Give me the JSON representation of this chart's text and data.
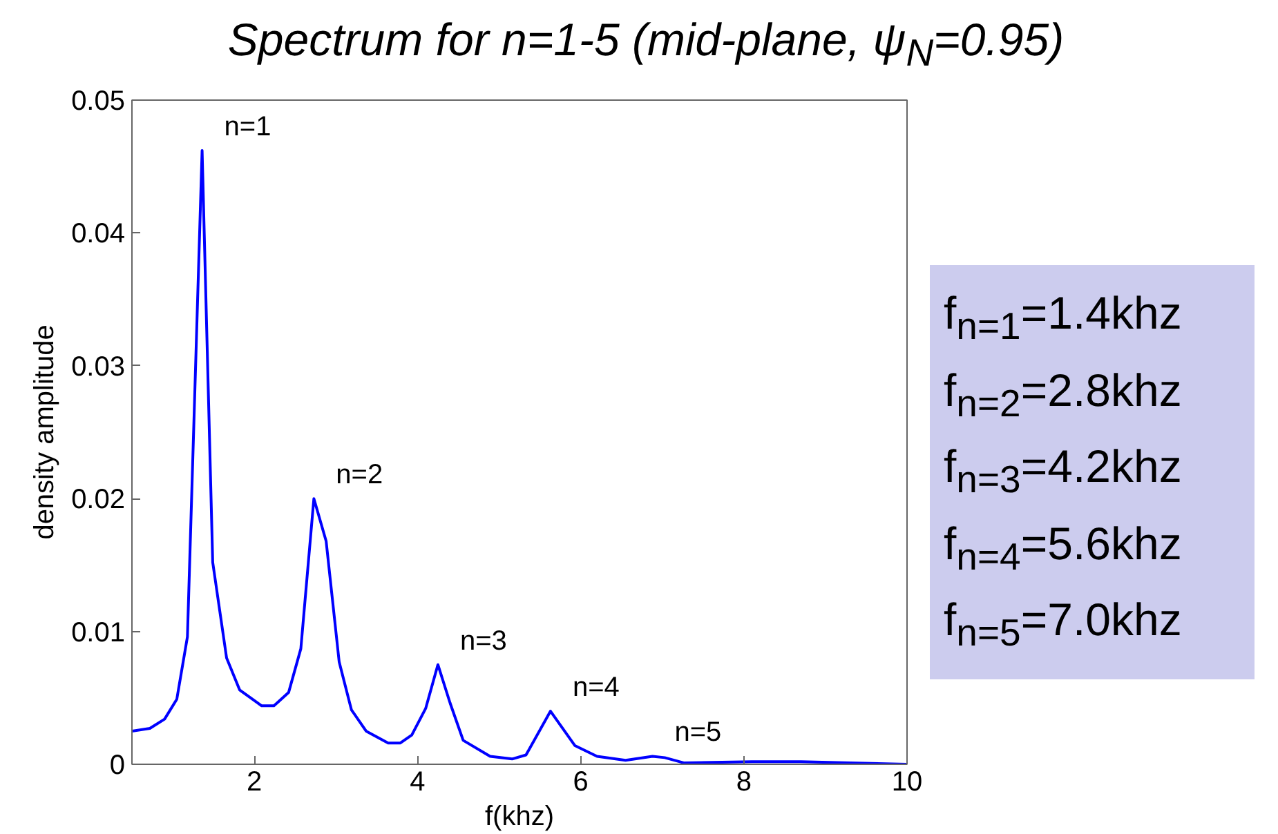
{
  "chart_data": {
    "type": "line",
    "title": "Spectrum for n=1-5 (mid-plane, ψ$_{N}$=0.95)",
    "xlabel": "f(khz)",
    "ylabel": "density amplitude",
    "x": [
      0.5,
      0.72,
      0.9,
      1.05,
      1.18,
      1.36,
      1.49,
      1.66,
      1.82,
      2.09,
      2.24,
      2.42,
      2.57,
      2.73,
      2.88,
      3.04,
      3.19,
      3.37,
      3.64,
      3.79,
      3.93,
      4.1,
      4.25,
      4.4,
      4.56,
      4.89,
      5.16,
      5.33,
      5.63,
      5.93,
      6.2,
      6.55,
      6.88,
      7.03,
      7.27,
      8.1,
      8.7,
      10.0
    ],
    "series": [
      {
        "color": "#0000ff",
        "values": [
          0.0025,
          0.0027,
          0.0034,
          0.0049,
          0.0096,
          0.0462,
          0.0152,
          0.008,
          0.0056,
          0.0044,
          0.0044,
          0.0054,
          0.0087,
          0.02,
          0.0168,
          0.0077,
          0.0041,
          0.0025,
          0.0016,
          0.0016,
          0.0022,
          0.0042,
          0.0075,
          0.0046,
          0.0018,
          0.0006,
          0.0004,
          0.0007,
          0.004,
          0.0014,
          0.0006,
          0.0003,
          0.0006,
          0.0005,
          0.0001,
          0.0002,
          0.0002,
          0.0
        ]
      }
    ],
    "xlim": [
      0.5,
      10
    ],
    "ylim": [
      0,
      0.05
    ],
    "xticks": [
      2,
      4,
      6,
      8,
      10
    ],
    "yticks": [
      0,
      0.01,
      0.02,
      0.03,
      0.04,
      0.05
    ],
    "grid": false,
    "marker": "none",
    "line_style": "solid",
    "annotations": [
      {
        "text": "n=1",
        "x": 1.36,
        "y": 0.0462
      },
      {
        "text": "n=2",
        "x": 2.73,
        "y": 0.02
      },
      {
        "text": "n=3",
        "x": 4.25,
        "y": 0.0075
      },
      {
        "text": "n=4",
        "x": 5.63,
        "y": 0.004
      },
      {
        "text": "n=5",
        "x": 6.88,
        "y": 0.0006
      },
      "f$_{n=1}$=1.4khz",
      "f$_{n=2}$=2.8khz",
      "f$_{n=3}$=4.2khz",
      "f$_{n=4}$=5.6khz",
      "f$_{n=5}$=7.0khz"
    ]
  }
}
